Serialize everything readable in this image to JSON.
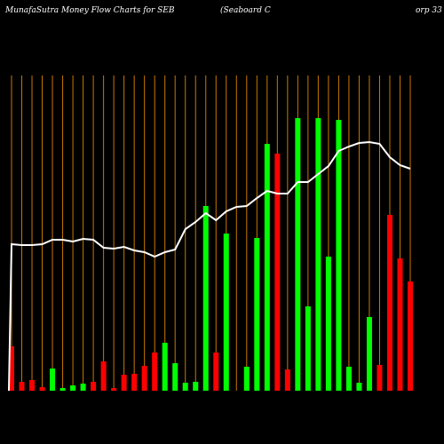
{
  "chart_data": {
    "type": "bar",
    "title": "MunafaSutra  Money Flow  Charts for SEB",
    "subtitle": [
      "(Seaboard C",
      "orp 33"
    ],
    "categories": [
      null,
      null,
      null,
      null,
      null,
      null,
      null,
      null,
      null,
      null,
      null,
      null,
      null,
      null,
      null,
      null,
      null,
      null,
      null,
      null,
      null,
      null,
      null,
      null,
      null,
      null,
      null,
      null,
      null,
      null,
      null,
      null,
      null,
      null,
      null,
      null,
      null,
      null,
      null,
      null
    ],
    "values": [
      50,
      10,
      12,
      4,
      25,
      3,
      6,
      8,
      10,
      33,
      3,
      18,
      19,
      28,
      43,
      54,
      31,
      9,
      10,
      208,
      43,
      177,
      0,
      27,
      172,
      278,
      267,
      24,
      307,
      95,
      307,
      151,
      305,
      27,
      9,
      83,
      29,
      198,
      149,
      123
    ],
    "colors": [
      "#ff0000",
      "#ff0000",
      "#ff0000",
      "#ff0000",
      "#00ff00",
      "#00ff00",
      "#00ff00",
      "#00ff00",
      "#ff0000",
      "#ff0000",
      "#ff0000",
      "#ff0000",
      "#ff0000",
      "#ff0000",
      "#ff0000",
      "#00ff00",
      "#00ff00",
      "#00ff00",
      "#00ff00",
      "#00ff00",
      "#ff0000",
      "#00ff00",
      "#00ff00",
      "#00ff00",
      "#00ff00",
      "#00ff00",
      "#ff0000",
      "#ff0000",
      "#00ff00",
      "#00ff00",
      "#00ff00",
      "#00ff00",
      "#00ff00",
      "#00ff00",
      "#00ff00",
      "#00ff00",
      "#ff0000",
      "#ff0000",
      "#ff0000",
      "#ff0000"
    ],
    "line": {
      "color": "#ffffff",
      "values": [
        165,
        164,
        164,
        165,
        170,
        170,
        168,
        171,
        170,
        161,
        160,
        162,
        158,
        156,
        151,
        156,
        159,
        182,
        190,
        200,
        192,
        202,
        207,
        208,
        217,
        225,
        222,
        222,
        235,
        235,
        244,
        253,
        270,
        275,
        279,
        280,
        278,
        263,
        254,
        250
      ]
    },
    "ylim": [
      0,
      360
    ],
    "gridline_color": "#c87800"
  }
}
